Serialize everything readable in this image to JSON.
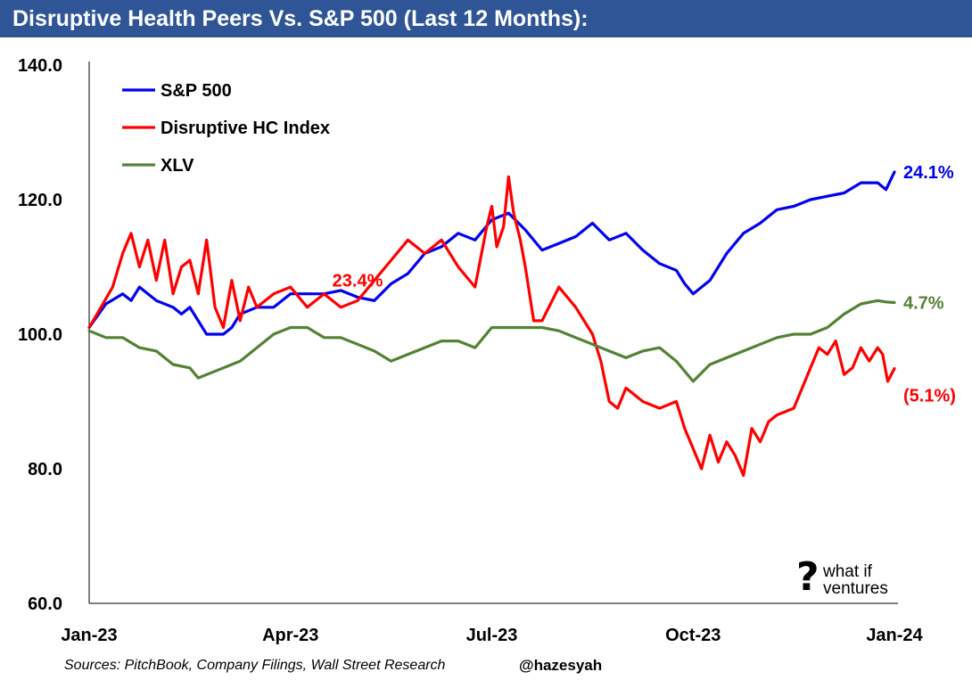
{
  "header": {
    "title": "Disruptive Health Peers Vs. S&P 500 (Last 12 Months):"
  },
  "footer": {
    "source": "Sources: PitchBook, Company Filings, Wall Street Research",
    "handle": "@hazesyah"
  },
  "logo": {
    "glyph": "?",
    "line1": "what if",
    "line2": "ventures"
  },
  "chart_data": {
    "type": "line",
    "title": "Disruptive Health Peers Vs. S&P 500 (Last 12 Months):",
    "xlabel": "",
    "ylabel": "",
    "ylim": [
      60,
      140
    ],
    "yticks": [
      "140.0",
      "120.0",
      "100.0",
      "80.0",
      "60.0"
    ],
    "ytick_values": [
      140,
      120,
      100,
      80,
      60
    ],
    "xlim": [
      0,
      48
    ],
    "xticks": [
      "Jan-23",
      "Apr-23",
      "Jul-23",
      "Oct-23",
      "Jan-24"
    ],
    "xtick_positions": [
      0,
      12,
      24,
      36,
      48
    ],
    "grid": false,
    "legend_position": "top-left",
    "series": [
      {
        "name": "S&P 500",
        "color": "#0000ee",
        "end_label": "24.1%",
        "x": [
          0,
          1,
          2,
          2.5,
          3,
          4,
          5,
          5.5,
          6,
          7,
          8,
          8.5,
          9,
          10,
          11,
          12,
          13,
          14,
          15,
          16,
          17,
          18,
          19,
          20,
          21,
          22,
          23,
          24,
          25,
          26,
          27,
          28,
          29,
          30,
          31,
          32,
          33,
          34,
          35,
          35.5,
          36,
          37,
          38,
          39,
          40,
          41,
          42,
          43,
          44,
          45,
          46,
          47,
          47.5,
          48
        ],
        "values": [
          101,
          104.5,
          106,
          105,
          107,
          105,
          104,
          103,
          104,
          100,
          100,
          101,
          103,
          104,
          104,
          106,
          106,
          106,
          106.5,
          105.5,
          105,
          107.5,
          109,
          112,
          113,
          115,
          114,
          117,
          118,
          115.5,
          112.5,
          113.5,
          114.5,
          116.5,
          114,
          115,
          112.5,
          110.5,
          109.5,
          107.5,
          106,
          108,
          112,
          115,
          116.5,
          118.5,
          119,
          120,
          120.5,
          121,
          122.5,
          122.5,
          121.5,
          124.1
        ]
      },
      {
        "name": "Disruptive HC Index",
        "color": "#ff0000",
        "end_label": "(5.1%)",
        "label_above_peak": "23.4%",
        "peak_index": 25,
        "x": [
          0,
          0.7,
          1.4,
          2,
          2.5,
          3,
          3.5,
          4,
          4.5,
          5,
          5.5,
          6,
          6.5,
          7,
          7.5,
          8,
          8.5,
          9,
          9.5,
          10,
          11,
          12,
          13,
          14,
          15,
          16,
          17,
          18,
          19,
          20,
          21,
          22,
          23,
          23.7,
          24,
          24.3,
          24.7,
          25,
          25.3,
          25.7,
          26,
          26.5,
          27,
          28,
          29,
          30,
          30.5,
          31,
          31.5,
          32,
          33,
          34,
          35,
          35.5,
          36,
          36.5,
          37,
          37.5,
          38,
          38.5,
          39,
          39.5,
          40,
          40.5,
          41,
          42,
          43,
          43.5,
          44,
          44.5,
          45,
          45.5,
          46,
          46.5,
          47,
          47.3,
          47.6,
          48
        ],
        "values": [
          101,
          104,
          107,
          112,
          115,
          110,
          114,
          108,
          114,
          106,
          110,
          111,
          106,
          114,
          104,
          101,
          108,
          102,
          107,
          104,
          106,
          107,
          104,
          106,
          104,
          105,
          108,
          111,
          114,
          112,
          114,
          110,
          107,
          116,
          119,
          113,
          116,
          123.4,
          118,
          114,
          110,
          102,
          102,
          107,
          104,
          100,
          96,
          90,
          89,
          92,
          90,
          89,
          90,
          86,
          83,
          80,
          85,
          81,
          84,
          82,
          79,
          86,
          84,
          87,
          88,
          89,
          95,
          98,
          97,
          99,
          94,
          95,
          98,
          96,
          98,
          97,
          93,
          94.9
        ]
      },
      {
        "name": "XLV",
        "color": "#548235",
        "end_label": "4.7%",
        "x": [
          0,
          1,
          2,
          3,
          4,
          5,
          6,
          6.5,
          7,
          8,
          9,
          10,
          11,
          12,
          13,
          14,
          15,
          16,
          17,
          18,
          19,
          20,
          21,
          22,
          23,
          24,
          25,
          26,
          27,
          28,
          29,
          30,
          31,
          32,
          33,
          34,
          35,
          36,
          37,
          38,
          39,
          40,
          41,
          42,
          43,
          44,
          45,
          46,
          47,
          47.5,
          48
        ],
        "values": [
          100.5,
          99.5,
          99.5,
          98,
          97.5,
          95.5,
          95,
          93.5,
          94,
          95,
          96,
          98,
          100,
          101,
          101,
          99.5,
          99.5,
          98.5,
          97.5,
          96,
          97,
          98,
          99,
          99,
          98,
          101,
          101,
          101,
          101,
          100.5,
          99.5,
          98.5,
          97.5,
          96.5,
          97.5,
          98,
          96,
          93,
          95.5,
          96.5,
          97.5,
          98.5,
          99.5,
          100,
          100,
          101,
          103,
          104.5,
          105,
          104.8,
          104.7
        ]
      }
    ]
  }
}
